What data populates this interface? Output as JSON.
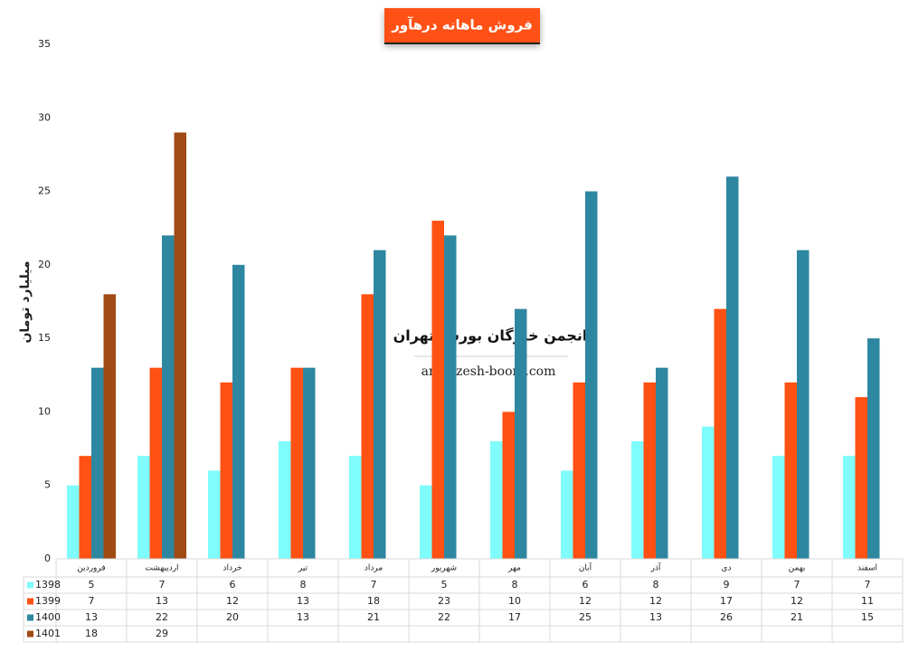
{
  "chart_data": {
    "type": "bar",
    "title": "فروش ماهانه درهآور",
    "y_label": "میلیارد تومان",
    "watermark": {
      "title": "انجمن خبرگان بورس تهران",
      "url": "amoozesh-boors.com"
    },
    "categories": [
      "فروردین",
      "اردیبهشت",
      "خرداد",
      "تیر",
      "مرداد",
      "شهریور",
      "مهر",
      "آبان",
      "آذر",
      "دی",
      "بهمن",
      "اسفند"
    ],
    "series": [
      {
        "name": "1398",
        "color": "#7ffcfc",
        "values": [
          5,
          7,
          6,
          8,
          7,
          5,
          8,
          6,
          8,
          9,
          7,
          7
        ]
      },
      {
        "name": "1399",
        "color": "#ff5113",
        "values": [
          7,
          13,
          12,
          13,
          18,
          23,
          10,
          12,
          12,
          17,
          12,
          11
        ]
      },
      {
        "name": "1400",
        "color": "#2e87a0",
        "values": [
          13,
          22,
          20,
          13,
          21,
          22,
          17,
          25,
          13,
          26,
          21,
          15
        ]
      },
      {
        "name": "1401",
        "color": "#a04a14",
        "values": [
          18,
          29,
          null,
          null,
          null,
          null,
          null,
          null,
          null,
          null,
          null,
          null
        ]
      }
    ],
    "ylim": [
      0,
      35
    ],
    "yticks": [
      0,
      5,
      10,
      15,
      20,
      25,
      30,
      35
    ],
    "grid": false
  }
}
